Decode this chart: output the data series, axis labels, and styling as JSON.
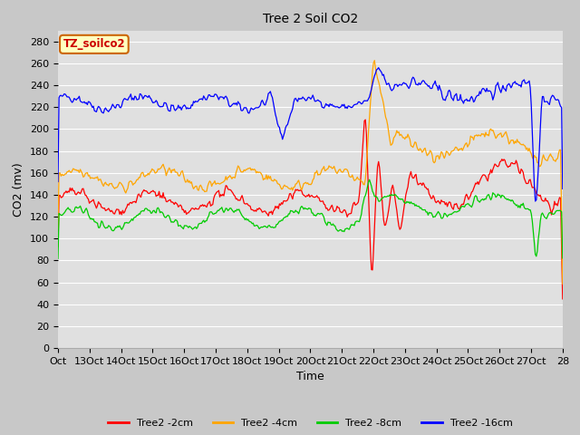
{
  "title": "Tree 2 Soil CO2",
  "xlabel": "Time",
  "ylabel": "CO2 (mv)",
  "ylim": [
    0,
    290
  ],
  "yticks": [
    0,
    20,
    40,
    60,
    80,
    100,
    120,
    140,
    160,
    180,
    200,
    220,
    240,
    260,
    280
  ],
  "xtick_labels": [
    "Oct",
    "13Oct",
    "14Oct",
    "15Oct",
    "16Oct",
    "17Oct",
    "18Oct",
    "19Oct",
    "20Oct",
    "21Oct",
    "22Oct",
    "23Oct",
    "24Oct",
    "25Oct",
    "26Oct",
    "27Oct",
    "28"
  ],
  "legend_labels": [
    "Tree2 -2cm",
    "Tree2 -4cm",
    "Tree2 -8cm",
    "Tree2 -16cm"
  ],
  "line_colors": [
    "#ff0000",
    "#ffa500",
    "#00cc00",
    "#0000ff"
  ],
  "annotation_text": "TZ_soilco2",
  "annotation_bg": "#ffffc0",
  "annotation_border": "#cc6600",
  "fig_bg": "#c8c8c8",
  "plot_bg": "#e0e0e0",
  "grid_color": "#ffffff",
  "title_fontsize": 10,
  "axis_fontsize": 8,
  "label_fontsize": 9
}
